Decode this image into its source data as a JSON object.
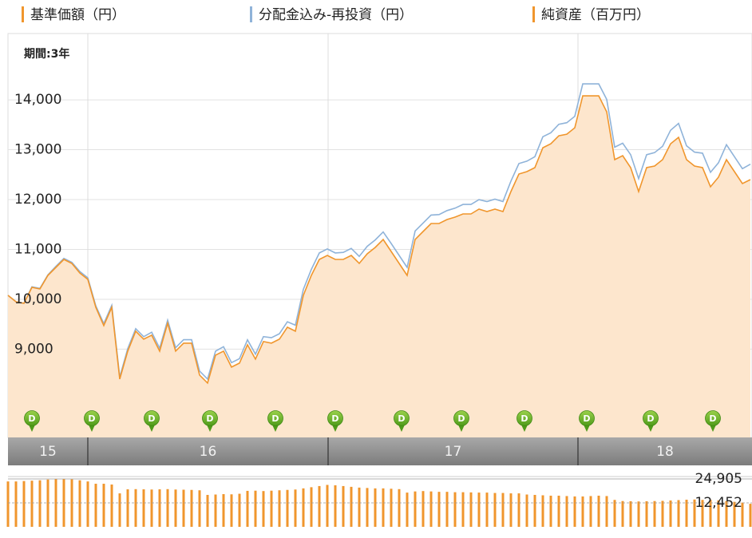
{
  "chart_data": [
    {
      "type": "line",
      "period_label": "期間:3年",
      "x": [
        0,
        1,
        2,
        3,
        4,
        5,
        6,
        7,
        8,
        9,
        10,
        11,
        12,
        13,
        14,
        15,
        16,
        17,
        18,
        19,
        20,
        21,
        22,
        23,
        24,
        25,
        26,
        27,
        28,
        29,
        30,
        31,
        32,
        33,
        34,
        35,
        36,
        37,
        38,
        39,
        40,
        41,
        42,
        43,
        44,
        45,
        46,
        47,
        48,
        49,
        50,
        51,
        52,
        53,
        54,
        55,
        56,
        57,
        58,
        59,
        60,
        61,
        62,
        63,
        64,
        65,
        66,
        67,
        68,
        69,
        70,
        71,
        72,
        73,
        74,
        75,
        76,
        77,
        78,
        79,
        80,
        81,
        82,
        83,
        84,
        85,
        86,
        87,
        88,
        89,
        90,
        91,
        92,
        93
      ],
      "xlim": [
        0,
        93.2
      ],
      "series": [
        {
          "name": "基準価額（円）",
          "color": "#f0962d",
          "values": [
            10080,
            9952,
            9920,
            10240,
            10208,
            10480,
            10640,
            10800,
            10720,
            10528,
            10400,
            9840,
            9472,
            9840,
            8400,
            8960,
            9360,
            9200,
            9280,
            8960,
            9520,
            8960,
            9120,
            9120,
            8480,
            8320,
            8880,
            8960,
            8640,
            8720,
            9088,
            8800,
            9152,
            9120,
            9200,
            9440,
            9360,
            10080,
            10480,
            10800,
            10880,
            10800,
            10800,
            10880,
            10720,
            10912,
            11040,
            11200,
            10960,
            10720,
            10480,
            11200,
            11360,
            11520,
            11520,
            11600,
            11648,
            11712,
            11712,
            11808,
            11760,
            11808,
            11760,
            12160,
            12512,
            12560,
            12640,
            13040,
            13120,
            13280,
            13312,
            13440,
            14080,
            14080,
            14080,
            13760,
            12800,
            12880,
            12640,
            12160,
            12640,
            12672,
            12800,
            13120,
            13248,
            12800,
            12672,
            12640,
            12256,
            12448,
            12800,
            12560,
            12320,
            12400
          ]
        },
        {
          "name": "分配金込み-再投資（円）",
          "color": "#8fb3d9",
          "values": [
            10080,
            9952,
            9920,
            10250,
            10218,
            10490,
            10660,
            10820,
            10740,
            10558,
            10430,
            9870,
            9512,
            9880,
            8440,
            9010,
            9410,
            9250,
            9340,
            9020,
            9580,
            9030,
            9190,
            9190,
            8560,
            8400,
            8960,
            9050,
            8730,
            8810,
            9188,
            8900,
            9252,
            9230,
            9310,
            9550,
            9480,
            10200,
            10600,
            10930,
            11010,
            10930,
            10940,
            11020,
            10860,
            11062,
            11190,
            11350,
            11120,
            10880,
            10640,
            11370,
            11530,
            11690,
            11700,
            11780,
            11828,
            11902,
            11902,
            11998,
            11960,
            12008,
            11960,
            12370,
            12722,
            12770,
            12860,
            13260,
            13340,
            13510,
            13542,
            13670,
            14320,
            14320,
            14320,
            14010,
            13050,
            13130,
            12900,
            12420,
            12900,
            12942,
            13070,
            13390,
            13528,
            13080,
            12952,
            12930,
            12546,
            12738,
            13100,
            12860,
            12620,
            12710
          ]
        }
      ],
      "ylim": [
        7230,
        15330
      ],
      "yticks": [
        {
          "value": 9000,
          "label": "9,000"
        },
        {
          "value": 10000,
          "label": "10,000"
        },
        {
          "value": 11000,
          "label": "11,000"
        },
        {
          "value": 12000,
          "label": "12,000"
        },
        {
          "value": 13000,
          "label": "13,000"
        },
        {
          "value": 14000,
          "label": "14,000"
        }
      ],
      "grid": true,
      "periods": [
        {
          "label": "15",
          "start": 0,
          "end": 10
        },
        {
          "label": "16",
          "start": 10,
          "end": 40.1
        },
        {
          "label": "17",
          "start": 40.1,
          "end": 71.4
        },
        {
          "label": "18",
          "start": 71.4,
          "end": 93.2
        }
      ],
      "distributions": {
        "label": "D",
        "x": [
          3,
          10.5,
          18,
          25.3,
          33.5,
          41,
          49.3,
          56.8,
          64.7,
          72.5,
          80.5,
          88.3
        ]
      }
    },
    {
      "type": "bar",
      "x": [
        0,
        1,
        2,
        3,
        4,
        5,
        6,
        7,
        8,
        9,
        10,
        11,
        12,
        13,
        14,
        15,
        16,
        17,
        18,
        19,
        20,
        21,
        22,
        23,
        24,
        25,
        26,
        27,
        28,
        29,
        30,
        31,
        32,
        33,
        34,
        35,
        36,
        37,
        38,
        39,
        40,
        41,
        42,
        43,
        44,
        45,
        46,
        47,
        48,
        49,
        50,
        51,
        52,
        53,
        54,
        55,
        56,
        57,
        58,
        59,
        60,
        61,
        62,
        63,
        64,
        65,
        66,
        67,
        68,
        69,
        70,
        71,
        72,
        73,
        74,
        75,
        76,
        77,
        78,
        79,
        80,
        81,
        82,
        83,
        84,
        85,
        86,
        87,
        88,
        89,
        90,
        91,
        92,
        93
      ],
      "xlim": [
        0,
        93.2
      ],
      "series": [
        {
          "name": "純資産（百万円）",
          "color": "#f0962d",
          "values": [
            23600,
            23600,
            23800,
            24000,
            24200,
            24600,
            24900,
            24900,
            24700,
            24200,
            23600,
            22400,
            22400,
            22000,
            17400,
            19500,
            19600,
            19500,
            19400,
            19500,
            19600,
            19400,
            19300,
            19200,
            19000,
            16600,
            16800,
            17000,
            16900,
            17200,
            18700,
            18800,
            18600,
            18800,
            19000,
            19200,
            19400,
            20000,
            20600,
            21200,
            21800,
            21600,
            21200,
            20800,
            20400,
            20200,
            20000,
            20000,
            19800,
            19600,
            17800,
            18400,
            18600,
            18400,
            18200,
            18200,
            18000,
            18000,
            17900,
            17800,
            17800,
            17600,
            17600,
            17400,
            17400,
            16800,
            16600,
            16400,
            16200,
            16200,
            16000,
            15800,
            15800,
            16000,
            16200,
            16000,
            14000,
            13400,
            13300,
            13200,
            13300,
            13400,
            13500,
            13700,
            13900,
            14100,
            14200,
            14000,
            14000,
            13800,
            13400,
            13000,
            12600,
            12000
          ]
        }
      ],
      "ylim": [
        0,
        24905
      ],
      "yticks": [
        {
          "value": 24905,
          "label": "24,905"
        },
        {
          "value": 12452,
          "label": "12,452"
        }
      ]
    }
  ]
}
